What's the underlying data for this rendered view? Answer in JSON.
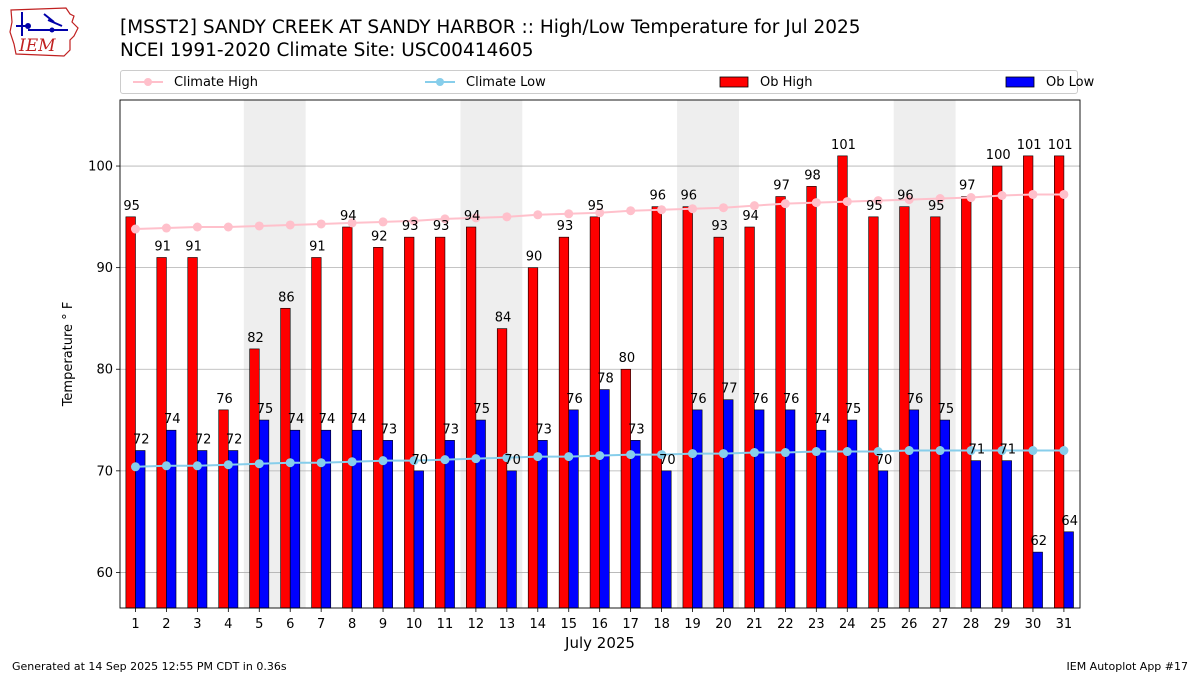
{
  "title_line1": "[MSST2] SANDY CREEK  AT SANDY HARBOR :: High/Low Temperature for Jul 2025",
  "title_line2": "NCEI 1991-2020 Climate Site: USC00414605",
  "logo_text": "IEM",
  "footer_left": "Generated at 14 Sep 2025 12:55 PM CDT in 0.36s",
  "footer_right": "IEM Autoplot App #17",
  "colors": {
    "ob_high": "#ff0000",
    "ob_low": "#0000ff",
    "climate_high": "#ffc0cb",
    "climate_low": "#87ceeb",
    "weekend_band": "#eeeeee",
    "grid": "#b0b0b0"
  },
  "legend": [
    {
      "label": "Climate High",
      "kind": "line",
      "color": "#ffc0cb"
    },
    {
      "label": "Climate Low",
      "kind": "line",
      "color": "#87ceeb"
    },
    {
      "label": "Ob High",
      "kind": "bar",
      "color": "#ff0000"
    },
    {
      "label": "Ob Low",
      "kind": "bar",
      "color": "#0000ff"
    }
  ],
  "chart_data": {
    "type": "bar",
    "xlabel": "July 2025",
    "ylabel": "Temperature ° F",
    "ylim": [
      56.5,
      106.5
    ],
    "yticks": [
      60,
      70,
      80,
      90,
      100
    ],
    "grid": "horizontal",
    "legend_position": "top",
    "categories": [
      "1",
      "2",
      "3",
      "4",
      "5",
      "6",
      "7",
      "8",
      "9",
      "10",
      "11",
      "12",
      "13",
      "14",
      "15",
      "16",
      "17",
      "18",
      "19",
      "20",
      "21",
      "22",
      "23",
      "24",
      "25",
      "26",
      "27",
      "28",
      "29",
      "30",
      "31"
    ],
    "shaded_days": [
      [
        5,
        6
      ],
      [
        12,
        13
      ],
      [
        19,
        20
      ],
      [
        26,
        27
      ]
    ],
    "series": [
      {
        "name": "Ob High",
        "kind": "bar",
        "values": [
          95,
          91,
          91,
          76,
          82,
          86,
          91,
          94,
          92,
          93,
          93,
          94,
          84,
          90,
          93,
          95,
          80,
          96,
          96,
          93,
          94,
          97,
          98,
          101,
          95,
          96,
          95,
          97,
          100,
          101,
          101
        ]
      },
      {
        "name": "Ob Low",
        "kind": "bar",
        "values": [
          72,
          74,
          72,
          72,
          75,
          74,
          74,
          74,
          73,
          70,
          73,
          75,
          70,
          73,
          76,
          78,
          73,
          70,
          76,
          77,
          76,
          76,
          74,
          75,
          70,
          76,
          75,
          71,
          71,
          62,
          64
        ]
      },
      {
        "name": "Climate High",
        "kind": "line",
        "values": [
          93.8,
          93.9,
          94.0,
          94.0,
          94.1,
          94.2,
          94.3,
          94.4,
          94.5,
          94.6,
          94.8,
          94.9,
          95.0,
          95.2,
          95.3,
          95.4,
          95.6,
          95.7,
          95.8,
          95.9,
          96.1,
          96.3,
          96.4,
          96.5,
          96.6,
          96.7,
          96.8,
          96.9,
          97.1,
          97.2,
          97.2
        ]
      },
      {
        "name": "Climate Low",
        "kind": "line",
        "values": [
          70.4,
          70.5,
          70.5,
          70.6,
          70.7,
          70.8,
          70.8,
          70.9,
          71.0,
          71.0,
          71.1,
          71.2,
          71.3,
          71.4,
          71.4,
          71.5,
          71.6,
          71.6,
          71.7,
          71.7,
          71.8,
          71.8,
          71.9,
          71.9,
          71.9,
          72.0,
          72.0,
          72.0,
          72.0,
          72.0,
          72.0
        ]
      }
    ]
  }
}
